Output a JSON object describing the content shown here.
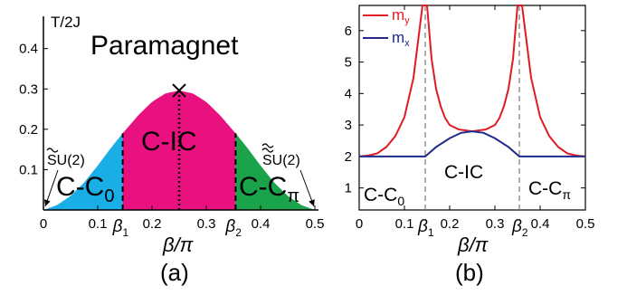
{
  "chart_data": [
    {
      "panel": "(a)",
      "type": "area",
      "xlabel": "β/π",
      "ylabel": "T/2J",
      "xlim": [
        0,
        0.5
      ],
      "ylim": [
        0,
        0.48
      ],
      "x_ticks": [
        "0",
        "0.1",
        "0.2",
        "0.3",
        "0.4",
        "0.5"
      ],
      "y_ticks": [
        "0.1",
        "0.2",
        "0.3",
        "0.4"
      ],
      "beta_labels": [
        {
          "text": "β",
          "sub": "1",
          "x": 0.146
        },
        {
          "text": "β",
          "sub": "2",
          "x": 0.354
        }
      ],
      "boundary": {
        "x": [
          0,
          0.025,
          0.05,
          0.075,
          0.1,
          0.125,
          0.146,
          0.175,
          0.2,
          0.225,
          0.25,
          0.275,
          0.3,
          0.325,
          0.354,
          0.375,
          0.4,
          0.425,
          0.45,
          0.475,
          0.5
        ],
        "y": [
          0,
          0.012,
          0.035,
          0.068,
          0.11,
          0.155,
          0.19,
          0.235,
          0.268,
          0.289,
          0.296,
          0.289,
          0.268,
          0.235,
          0.19,
          0.155,
          0.11,
          0.068,
          0.035,
          0.012,
          0
        ]
      },
      "transitions": [
        0.146,
        0.354
      ],
      "critical_point": {
        "x": 0.25,
        "y": 0.296
      },
      "phases": [
        {
          "main": "C-C",
          "sub": "0",
          "color": "#1aaee6",
          "x_range": [
            0,
            0.146
          ]
        },
        {
          "main": "C-IC",
          "sub": "",
          "color": "#e8117f",
          "x_range": [
            0.146,
            0.354
          ]
        },
        {
          "main": "C-C",
          "sub": "π",
          "color": "#1aa34a",
          "x_range": [
            0.354,
            0.5
          ]
        }
      ],
      "region_title": "Paramagnet",
      "su_labels": [
        {
          "prefix": "S",
          "suffix": "U(2)",
          "tilde_count": 1,
          "x": 0.06,
          "y": 0.2
        },
        {
          "prefix": "S",
          "suffix": "U(2)",
          "tilde_count": 2,
          "x": 0.44,
          "y": 0.2
        }
      ]
    },
    {
      "panel": "(b)",
      "type": "line",
      "xlabel": "β/π",
      "xlim": [
        0,
        0.5
      ],
      "ylim": [
        0.3,
        6.8
      ],
      "x_ticks": [
        "0",
        "0.1",
        "0.2",
        "0.3",
        "0.4",
        "0.5"
      ],
      "y_ticks": [
        "1",
        "2",
        "3",
        "4",
        "5",
        "6"
      ],
      "beta_labels": [
        {
          "text": "β",
          "sub": "1",
          "x": 0.146
        },
        {
          "text": "β",
          "sub": "2",
          "x": 0.354
        }
      ],
      "transitions": [
        0.146,
        0.354
      ],
      "legend": [
        {
          "main": "m",
          "sub": "y",
          "color": "#e01b24"
        },
        {
          "main": "m",
          "sub": "x",
          "color": "#1f2a8a"
        }
      ],
      "series": [
        {
          "name": "m_y",
          "color": "#e01b24",
          "x": [
            0,
            0.02,
            0.04,
            0.06,
            0.08,
            0.1,
            0.12,
            0.14,
            0.15,
            0.16,
            0.17,
            0.18,
            0.19,
            0.2,
            0.22,
            0.25,
            0.28,
            0.3,
            0.31,
            0.32,
            0.33,
            0.34,
            0.35,
            0.36,
            0.38,
            0.4,
            0.42,
            0.44,
            0.46,
            0.48,
            0.5
          ],
          "y": [
            2.0,
            2.03,
            2.1,
            2.3,
            2.65,
            3.25,
            4.5,
            6.8,
            6.8,
            5.1,
            4.15,
            3.6,
            3.22,
            3.0,
            2.86,
            2.8,
            2.86,
            3.0,
            3.22,
            3.6,
            4.15,
            5.1,
            6.8,
            6.8,
            4.5,
            3.25,
            2.65,
            2.3,
            2.1,
            2.03,
            2.0
          ]
        },
        {
          "name": "m_x",
          "color": "#1f2a8a",
          "x": [
            0,
            0.146,
            0.17,
            0.2,
            0.225,
            0.25,
            0.275,
            0.3,
            0.33,
            0.354,
            0.5
          ],
          "y": [
            2.0,
            2.0,
            2.3,
            2.58,
            2.75,
            2.8,
            2.75,
            2.58,
            2.3,
            2.0,
            2.0
          ]
        }
      ],
      "phases": [
        {
          "main": "C-C",
          "sub": "0"
        },
        {
          "main": "C-IC",
          "sub": ""
        },
        {
          "main": "C-C",
          "sub": "π"
        }
      ]
    }
  ]
}
